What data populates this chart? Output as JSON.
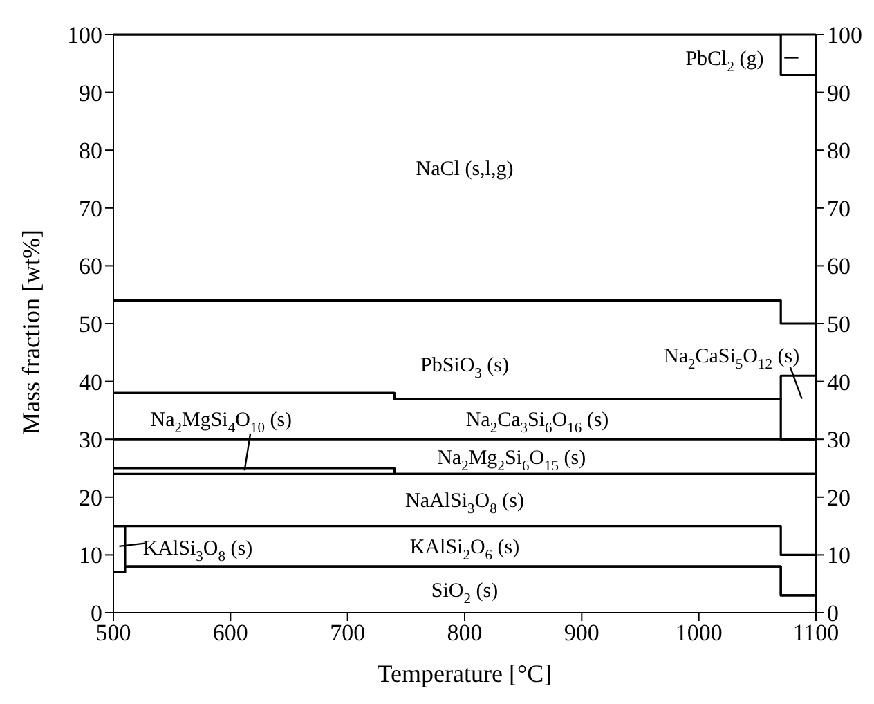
{
  "chart_data": {
    "type": "step",
    "xlabel": "Temperature [°C]",
    "ylabel": "Mass fraction [wt%]",
    "x": [
      500,
      510,
      740,
      1070,
      1100
    ],
    "series": [
      {
        "color": "#000000",
        "values": [
          7,
          8,
          8,
          3,
          3
        ]
      },
      {
        "color": "#000000",
        "values": [
          15,
          8,
          8,
          3,
          3
        ]
      },
      {
        "color": "#000000",
        "values": [
          15,
          15,
          15,
          10,
          10
        ]
      },
      {
        "color": "#000000",
        "values": [
          24,
          24,
          24,
          24,
          24
        ]
      },
      {
        "color": "#000000",
        "values": [
          25,
          25,
          24,
          24,
          24
        ]
      },
      {
        "color": "#000000",
        "values": [
          30,
          30,
          30,
          30,
          30
        ]
      },
      {
        "color": "#000000",
        "values": [
          38,
          38,
          37,
          30,
          30
        ]
      },
      {
        "color": "#000000",
        "values": [
          38,
          38,
          37,
          41,
          41
        ]
      },
      {
        "color": "#000000",
        "values": [
          54,
          54,
          54,
          50,
          50
        ]
      },
      {
        "color": "#000000",
        "values": [
          100,
          100,
          100,
          93,
          93
        ]
      }
    ],
    "annotations": [
      "SiO$_{2}$ (s)",
      "KAlSi$_{3}$O$_{8}$ (s)",
      "KAlSi$_{2}$O$_{6}$ (s)",
      "NaAlSi$_{3}$O$_{8}$ (s)",
      "Na$_{2}$MgSi$_{4}$O$_{10}$ (s)",
      "Na$_{2}$Mg$_{2}$Si$_{6}$O$_{15}$ (s)",
      "Na$_{2}$Ca$_{3}$Si$_{6}$O$_{16}$ (s)",
      "PbSiO$_{3}$ (s)",
      "Na$_{2}$CaSi$_{5}$O$_{12}$ (s)",
      "NaCl (s,l,g)",
      "PbCl$_{2}$ (g)"
    ],
    "xlim": [
      500,
      1100
    ],
    "xticks": [
      500,
      600,
      700,
      800,
      900,
      1000,
      1100
    ],
    "ylim": [
      0,
      100
    ],
    "yticks": [
      0,
      10,
      20,
      30,
      40,
      50,
      60,
      70,
      80,
      90,
      100
    ],
    "y2lim": [
      0,
      100
    ],
    "y2ticks": [
      0,
      10,
      20,
      30,
      40,
      50,
      60,
      70,
      80,
      90,
      100
    ]
  }
}
